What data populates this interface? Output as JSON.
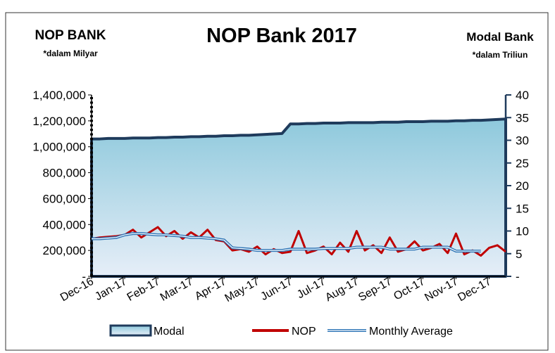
{
  "chart_data": {
    "type": "line",
    "title": "NOP Bank 2017",
    "y_axis_label": "NOP BANK",
    "y_axis_note": "*dalam Milyar",
    "y2_axis_label": "Modal Bank",
    "y2_axis_note": "*dalam Triliun",
    "categories": [
      "Dec-16",
      null,
      null,
      null,
      "Jan-17",
      null,
      null,
      null,
      "Feb-17",
      null,
      null,
      null,
      "Mar-17",
      null,
      null,
      null,
      "Apr-17",
      null,
      null,
      null,
      "May-17",
      null,
      null,
      null,
      "Jun-17",
      null,
      null,
      null,
      "Jul-17",
      null,
      null,
      null,
      "Aug-17",
      null,
      null,
      null,
      "Sep-17",
      null,
      null,
      null,
      "Oct-17",
      null,
      null,
      null,
      "Nov-17",
      null,
      null,
      null,
      "Dec-17",
      null,
      null
    ],
    "series": [
      {
        "name": "Modal",
        "color": "#1f3b5c",
        "fill": "#9fcfe0",
        "kind": "area",
        "axis": "y2",
        "values": [
          30.3,
          30.3,
          30.4,
          30.4,
          30.4,
          30.5,
          30.5,
          30.5,
          30.6,
          30.6,
          30.7,
          30.7,
          30.8,
          30.8,
          30.9,
          30.9,
          31.0,
          31.0,
          31.1,
          31.1,
          31.2,
          31.3,
          31.4,
          31.5,
          33.6,
          33.6,
          33.7,
          33.7,
          33.8,
          33.8,
          33.8,
          33.9,
          33.9,
          33.9,
          33.9,
          34.0,
          34.0,
          34.0,
          34.1,
          34.1,
          34.1,
          34.2,
          34.2,
          34.2,
          34.3,
          34.3,
          34.4,
          34.4,
          34.5,
          34.6,
          34.7
        ]
      },
      {
        "name": "NOP",
        "color": "#c00000",
        "kind": "line",
        "values": [
          290000,
          300000,
          305000,
          310000,
          320000,
          360000,
          300000,
          340000,
          380000,
          310000,
          350000,
          290000,
          340000,
          300000,
          360000,
          280000,
          270000,
          200000,
          210000,
          190000,
          230000,
          170000,
          210000,
          180000,
          190000,
          350000,
          180000,
          200000,
          230000,
          170000,
          260000,
          190000,
          350000,
          200000,
          240000,
          180000,
          300000,
          190000,
          210000,
          270000,
          200000,
          220000,
          250000,
          180000,
          330000,
          170000,
          200000,
          160000,
          220000,
          240000,
          190000
        ]
      },
      {
        "name": "Monthly Average",
        "color": "#2e75b6",
        "kind": "double",
        "values": [
          290000,
          290000,
          295000,
          300000,
          320000,
          330000,
          330000,
          325000,
          320000,
          320000,
          315000,
          310000,
          300000,
          300000,
          295000,
          290000,
          280000,
          220000,
          215000,
          210000,
          200000,
          200000,
          200000,
          200000,
          210000,
          210000,
          210000,
          210000,
          215000,
          215000,
          215000,
          215000,
          225000,
          225000,
          225000,
          225000,
          210000,
          210000,
          210000,
          210000,
          225000,
          225000,
          225000,
          225000,
          195000,
          195000,
          195000,
          195000,
          null,
          null,
          null
        ]
      }
    ],
    "ylim": [
      0,
      1400000
    ],
    "yticks": [
      {
        "value": 0,
        "label": "-"
      },
      {
        "value": 200000,
        "label": "200,000"
      },
      {
        "value": 400000,
        "label": "400,000"
      },
      {
        "value": 600000,
        "label": "600,000"
      },
      {
        "value": 800000,
        "label": "800,000"
      },
      {
        "value": 1000000,
        "label": "1,000,000"
      },
      {
        "value": 1200000,
        "label": "1,200,000"
      },
      {
        "value": 1400000,
        "label": "1,400,000"
      }
    ],
    "y2lim": [
      0,
      40
    ],
    "y2ticks": [
      {
        "value": 0,
        "label": "-"
      },
      5,
      10,
      15,
      20,
      25,
      30,
      35,
      40
    ],
    "legend": "bottom"
  }
}
